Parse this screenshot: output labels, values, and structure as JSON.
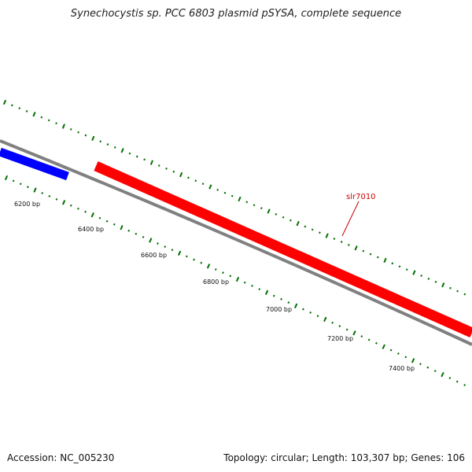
{
  "title": "Synechocystis sp. PCC 6803 plasmid pSYSA, complete sequence",
  "accession": "Accession: NC_005230",
  "summary": "Topology: circular; Length: 103,307 bp; Genes: 106",
  "colors": {
    "backbone": "#808080",
    "forward_gene": "#ff0000",
    "reverse_gene": "#0000ff",
    "ticks": "#007000",
    "gene_label": "#cc0000"
  },
  "ticks": {
    "labels": [
      "6200 bp",
      "6400 bp",
      "6600 bp",
      "6800 bp",
      "7000 bp",
      "7200 bp",
      "7400 bp"
    ]
  },
  "genes": [
    {
      "name": "",
      "strand": "reverse",
      "color": "#0000ff"
    },
    {
      "name": "slr7010",
      "strand": "forward",
      "color": "#ff0000"
    }
  ]
}
